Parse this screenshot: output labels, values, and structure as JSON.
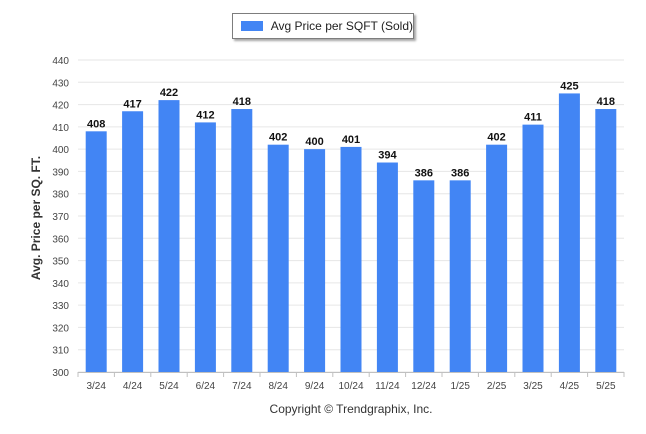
{
  "chart_data": {
    "type": "bar",
    "categories": [
      "3/24",
      "4/24",
      "5/24",
      "6/24",
      "7/24",
      "8/24",
      "9/24",
      "10/24",
      "11/24",
      "12/24",
      "1/25",
      "2/25",
      "3/25",
      "4/25",
      "5/25"
    ],
    "series": [
      {
        "name": "Avg Price per SQFT (Sold)",
        "values": [
          408,
          417,
          422,
          412,
          418,
          402,
          400,
          401,
          394,
          386,
          386,
          402,
          411,
          425,
          418
        ]
      }
    ],
    "xlabel": "",
    "ylabel": "Avg. Price per SQ. FT.",
    "ylim": [
      300,
      440
    ],
    "yticks": [
      300,
      310,
      320,
      330,
      340,
      350,
      360,
      370,
      380,
      390,
      400,
      410,
      420,
      430,
      440
    ],
    "grid": true,
    "legend_position": "top-center",
    "bar_color": "#4285f4",
    "data_labels": true
  },
  "legend": {
    "label": "Avg Price per SQFT (Sold)"
  },
  "footer": {
    "text": "Copyright © Trendgraphix, Inc."
  }
}
